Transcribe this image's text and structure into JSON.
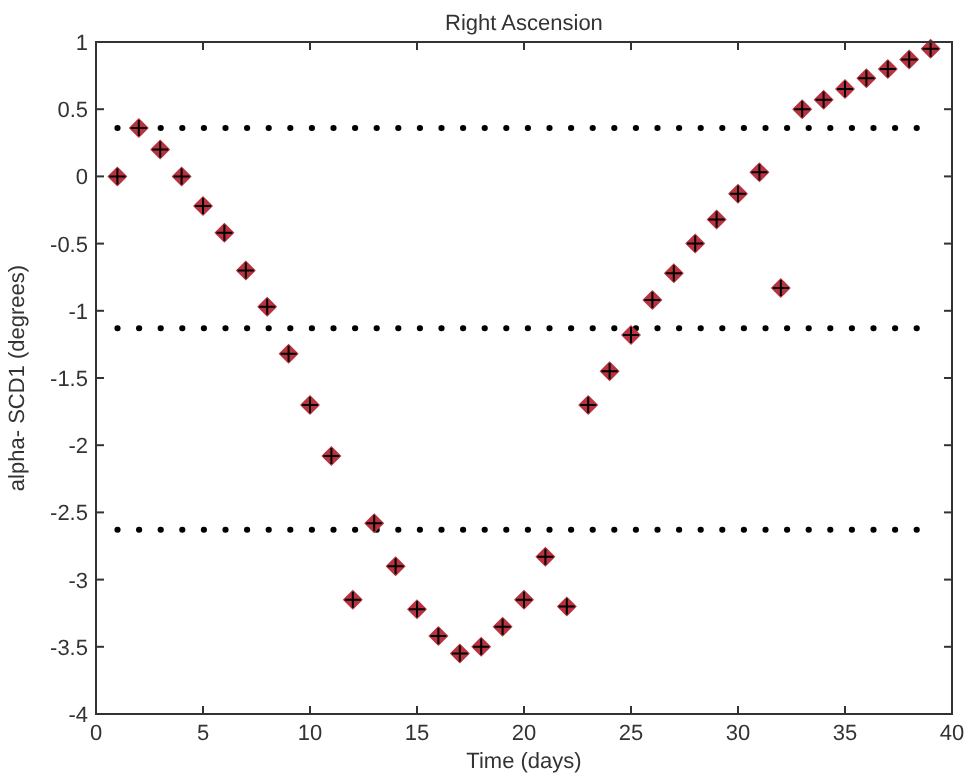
{
  "chart_data": {
    "type": "scatter",
    "title": "Right Ascension",
    "xlabel": "Time (days)",
    "ylabel": "alpha- SCD1 (degrees)",
    "x": [
      1,
      2,
      3,
      4,
      5,
      6,
      7,
      8,
      9,
      10,
      11,
      12,
      13,
      14,
      15,
      16,
      17,
      18,
      19,
      20,
      21,
      22,
      23,
      24,
      25,
      26,
      27,
      28,
      29,
      30,
      31,
      32,
      33,
      34,
      35,
      36,
      37,
      38,
      39
    ],
    "series": [
      {
        "color": "#b8333f",
        "values": [
          0,
          0.36,
          0.2,
          0,
          -0.22,
          -0.42,
          -0.7,
          -0.97,
          -1.32,
          -1.7,
          -2.08,
          -3.15,
          -2.58,
          -2.9,
          -3.22,
          -3.42,
          -3.55,
          -3.5,
          -3.35,
          -3.15,
          -2.83,
          -3.2,
          -1.7,
          -1.45,
          -1.18,
          -0.92,
          -0.72,
          -0.5,
          -0.32,
          -0.13,
          0.03,
          -0.83,
          0.5,
          0.57,
          0.65,
          0.73,
          0.8,
          0.87,
          0.95
        ]
      }
    ],
    "ref_lines": [
      {
        "axis": "y",
        "value": 0.36,
        "color": "#000000",
        "line_style": "dotted"
      },
      {
        "axis": "y",
        "value": -1.13,
        "color": "#000000",
        "line_style": "dotted"
      },
      {
        "axis": "y",
        "value": -2.63,
        "color": "#000000",
        "line_style": "dotted"
      }
    ],
    "xlim": [
      0,
      40
    ],
    "ylim": [
      -4,
      1
    ],
    "xticks": [
      0,
      5,
      10,
      15,
      20,
      25,
      30,
      35,
      40
    ],
    "yticks": [
      -4,
      -3.5,
      -3,
      -2.5,
      -2,
      -1.5,
      -1,
      -0.5,
      0,
      0.5,
      1
    ],
    "marker": "diamond",
    "grid": false
  }
}
